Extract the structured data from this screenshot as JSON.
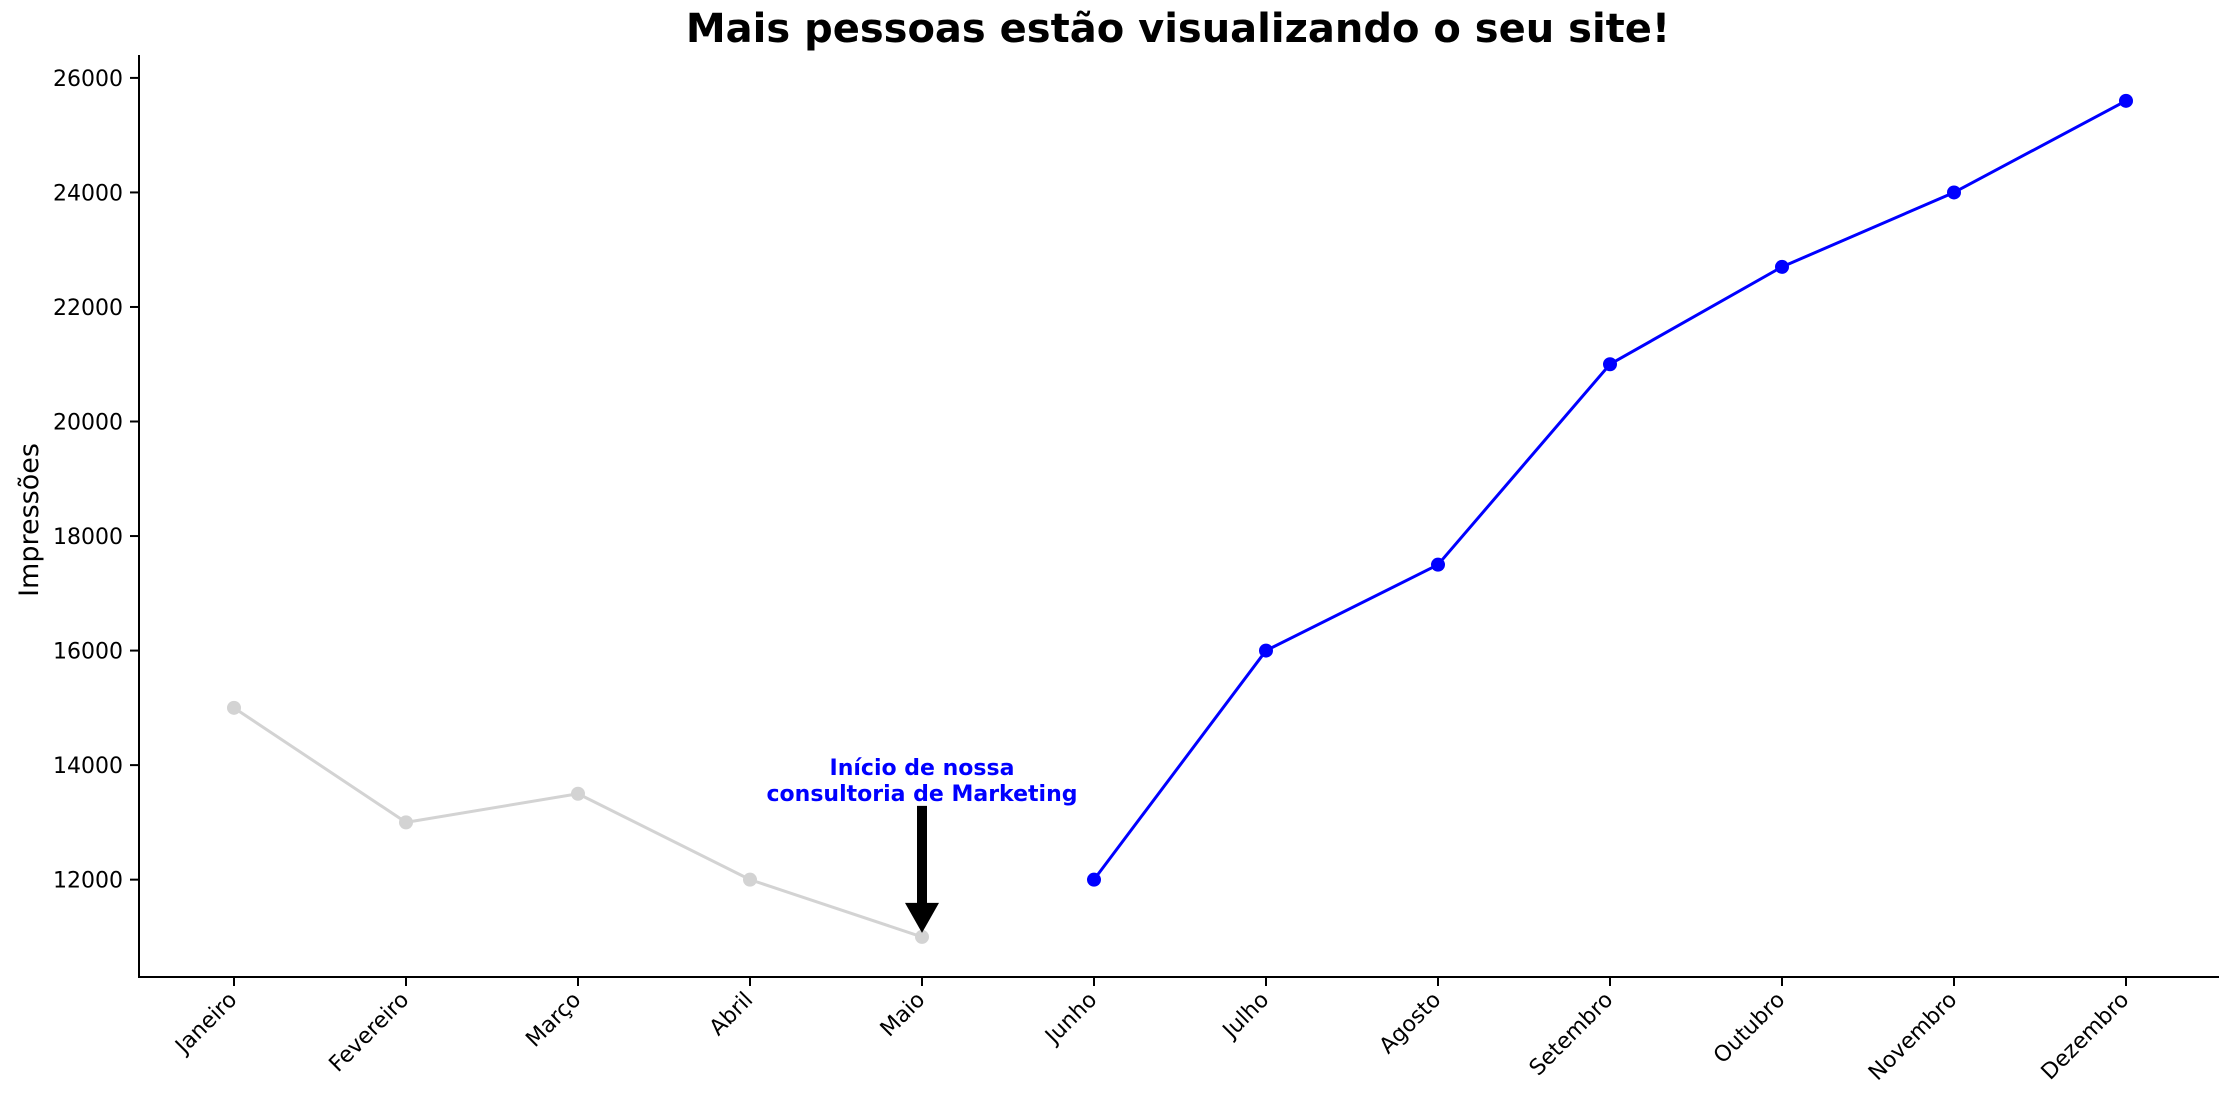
{
  "chart_data": {
    "type": "line",
    "title": "Mais pessoas estão visualizando o seu site!",
    "xlabel": "",
    "ylabel": "Impressões",
    "categories": [
      "Janeiro",
      "Fevereiro",
      "Março",
      "Abril",
      "Maio",
      "Junho",
      "Julho",
      "Agosto",
      "Setembro",
      "Outubro",
      "Novembro",
      "Dezembro"
    ],
    "ylim": [
      10300,
      26400
    ],
    "yticks": [
      12000,
      14000,
      16000,
      18000,
      20000,
      22000,
      24000,
      26000
    ],
    "grid": false,
    "series": [
      {
        "color": "#d3d3d3",
        "x": [
          "Janeiro",
          "Fevereiro",
          "Março",
          "Abril",
          "Maio"
        ],
        "values": [
          15000,
          13000,
          13500,
          12000,
          11000
        ]
      },
      {
        "color": "#0000ff",
        "x": [
          "Junho",
          "Julho",
          "Agosto",
          "Setembro",
          "Outubro",
          "Novembro",
          "Dezembro"
        ],
        "values": [
          12000,
          16000,
          17500,
          21000,
          22700,
          24000,
          25600
        ]
      }
    ],
    "annotation": {
      "lines": [
        "Início de nossa",
        "consultoria de Marketing"
      ],
      "color": "#0000ff",
      "arrow_color": "#000000",
      "target_x": "Maio",
      "target_y": 11000,
      "text_y": 13200
    }
  }
}
